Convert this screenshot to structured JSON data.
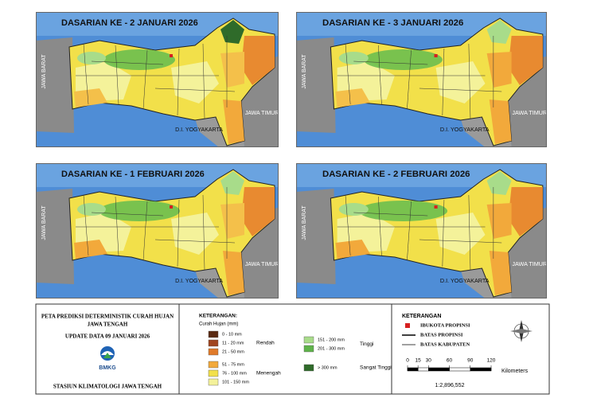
{
  "panels": [
    {
      "title": "DASARIAN KE - 2 JANUARI 2026",
      "west": "JAWA BARAT",
      "east": "JAWA TIMUR",
      "south": "D.I. YOGYAKARTA"
    },
    {
      "title": "DASARIAN KE - 3  JANUARI 2026",
      "west": "JAWA BARAT",
      "east": "JAWA TIMUR",
      "south": "D.I. YOGYAKARTA"
    },
    {
      "title": "DASARIAN KE - 1 FEBRUARI 2026",
      "west": "JAWA BARAT",
      "east": "JAWA TIMUR",
      "south": "D.I. YOGYAKARTA"
    },
    {
      "title": "DASARIAN KE - 2 FEBRUARI 2026",
      "west": "JAWA BARAT",
      "east": "JAWA TIMUR",
      "south": "D.I. YOGYAKARTA"
    }
  ],
  "title_block": {
    "line1": "PETA PREDIKSI DETERMINISTIK CURAH HUJAN",
    "line2": "JAWA TENGAH",
    "update": "UPDATE DATA 09 JANUARI 2026",
    "logo": "BMKG",
    "station": "STASIUN KLIMATOLOGI JAWA TENGAH"
  },
  "legend": {
    "heading": "KETERANGAN:",
    "subheading": "Curah Hujan (mm)",
    "groups": [
      {
        "name": "Rendah",
        "items": [
          {
            "label": "0 - 10 mm",
            "color": "#5a2a12"
          },
          {
            "label": "11 - 20 mm",
            "color": "#a0451f"
          },
          {
            "label": "21 - 50 mm",
            "color": "#e07a2a"
          }
        ]
      },
      {
        "name": "Menengah",
        "items": [
          {
            "label": "51 - 75 mm",
            "color": "#f2a93b"
          },
          {
            "label": "76 - 100 mm",
            "color": "#f2e04a"
          },
          {
            "label": "101 - 150 mm",
            "color": "#f4f29a"
          }
        ]
      },
      {
        "name": "Tinggi",
        "items": [
          {
            "label": "151 - 200 mm",
            "color": "#a8dc8a"
          },
          {
            "label": "201 - 300 mm",
            "color": "#5fb34a"
          }
        ]
      },
      {
        "name": "Sangat Tinggi",
        "items": [
          {
            "label": "> 300 mm",
            "color": "#2f6b2a"
          }
        ]
      }
    ]
  },
  "symbols": {
    "heading": "KETERANGAN",
    "capital": "IBUKOTA PROPINSI",
    "province": "BATAS PROPINSI",
    "regency": "BATAS KABUPATEN"
  },
  "scale": {
    "ticks": [
      0,
      15,
      30,
      60,
      90,
      120
    ],
    "unit": "Kilometers",
    "ratio": "1:2,896,552"
  }
}
